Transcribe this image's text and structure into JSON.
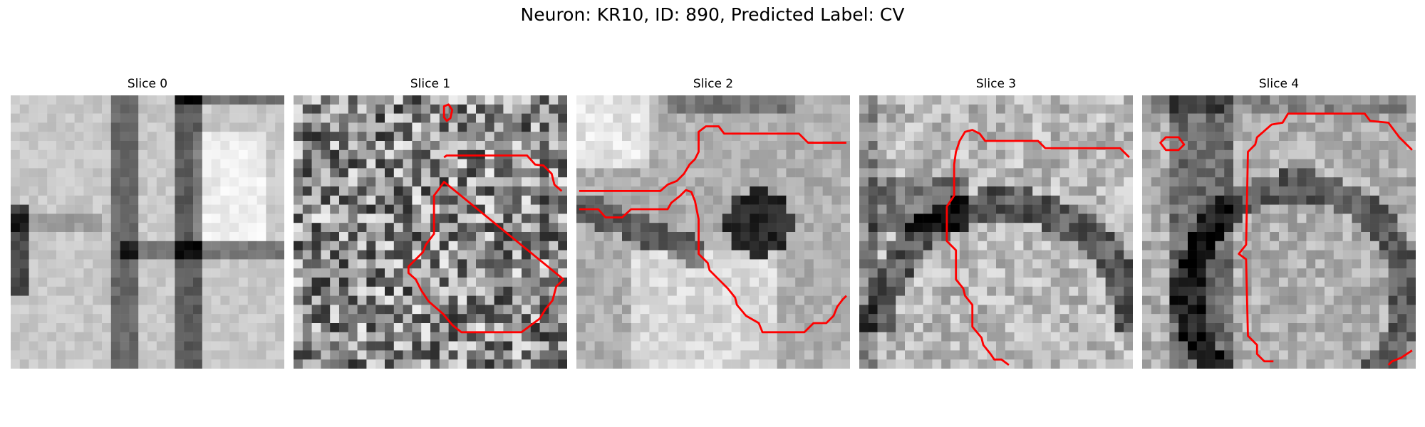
{
  "figure": {
    "title": "Neuron: KR10, ID: 890, Predicted Label: CV"
  },
  "colors": {
    "contour": "#ff0000",
    "background": "#ffffff"
  },
  "slices": [
    {
      "title": "Slice 0",
      "has_contour": false
    },
    {
      "title": "Slice 1",
      "has_contour": true
    },
    {
      "title": "Slice 2",
      "has_contour": true
    },
    {
      "title": "Slice 3",
      "has_contour": true
    },
    {
      "title": "Slice 4",
      "has_contour": true
    }
  ]
}
